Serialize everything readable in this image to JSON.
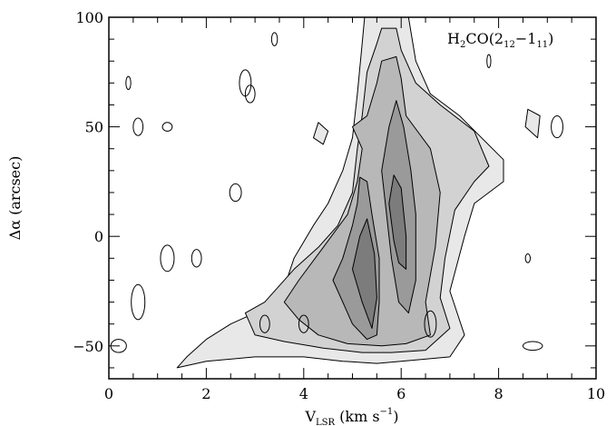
{
  "chart_data": {
    "type": "contour",
    "xlabel": {
      "main": "V",
      "sub": "LSR",
      "units": " (km s",
      "exp": "−1",
      "close": ")"
    },
    "ylabel": "Δα (arcsec)",
    "xlim": [
      0,
      10
    ],
    "ylim": [
      -65,
      100
    ],
    "xticks_major": [
      0,
      2,
      4,
      6,
      8,
      10
    ],
    "xticks_minor_step": 0.5,
    "yticks_major": [
      -50,
      0,
      50,
      100
    ],
    "yticks_minor_step": 10,
    "annotation": {
      "mol": "H",
      "s1": "2",
      "mid": "CO(2",
      "s2": "12",
      "dash": "−1",
      "s3": "11",
      "end": ")"
    },
    "levels": [
      {
        "fill": "#e8e8e8",
        "polygons": [
          [
            [
              1.4,
              -60
            ],
            [
              1.6,
              -55
            ],
            [
              2.0,
              -47
            ],
            [
              2.5,
              -40
            ],
            [
              3.0,
              -35
            ],
            [
              3.5,
              -30
            ],
            [
              3.8,
              -10
            ],
            [
              4.2,
              5
            ],
            [
              4.5,
              15
            ],
            [
              4.8,
              30
            ],
            [
              5.0,
              45
            ],
            [
              5.1,
              65
            ],
            [
              5.2,
              88
            ],
            [
              5.25,
              100
            ],
            [
              6.15,
              100
            ],
            [
              6.3,
              80
            ],
            [
              6.6,
              65
            ],
            [
              7.2,
              55
            ],
            [
              8.1,
              35
            ],
            [
              8.1,
              25
            ],
            [
              7.5,
              15
            ],
            [
              7.3,
              0
            ],
            [
              7.0,
              -25
            ],
            [
              7.3,
              -45
            ],
            [
              7.0,
              -55
            ],
            [
              6.0,
              -57
            ],
            [
              5.5,
              -58
            ],
            [
              4.8,
              -57
            ],
            [
              4.0,
              -55
            ],
            [
              3.0,
              -55
            ],
            [
              2.0,
              -57
            ]
          ],
          [
            [
              4.2,
              45
            ],
            [
              4.4,
              42
            ],
            [
              4.5,
              48
            ],
            [
              4.3,
              52
            ]
          ],
          [
            [
              8.55,
              50
            ],
            [
              8.8,
              45
            ],
            [
              8.85,
              55
            ],
            [
              8.6,
              58
            ]
          ]
        ]
      },
      {
        "fill": "#d2d2d2",
        "polygons": [
          [
            [
              2.8,
              -35
            ],
            [
              3.2,
              -30
            ],
            [
              3.8,
              -15
            ],
            [
              4.3,
              -5
            ],
            [
              4.7,
              5
            ],
            [
              5.0,
              20
            ],
            [
              5.1,
              40
            ],
            [
              5.2,
              55
            ],
            [
              5.3,
              75
            ],
            [
              5.5,
              88
            ],
            [
              5.6,
              95
            ],
            [
              5.9,
              95
            ],
            [
              6.0,
              85
            ],
            [
              6.3,
              70
            ],
            [
              6.8,
              60
            ],
            [
              7.5,
              48
            ],
            [
              7.8,
              32
            ],
            [
              7.5,
              25
            ],
            [
              7.1,
              12
            ],
            [
              6.9,
              -10
            ],
            [
              6.8,
              -28
            ],
            [
              7.0,
              -42
            ],
            [
              6.5,
              -52
            ],
            [
              5.8,
              -53
            ],
            [
              5.2,
              -53
            ],
            [
              4.4,
              -51
            ],
            [
              3.6,
              -48
            ],
            [
              3.0,
              -45
            ]
          ]
        ]
      },
      {
        "fill": "#b8b8b8",
        "polygons": [
          [
            [
              3.9,
              -20
            ],
            [
              4.4,
              -5
            ],
            [
              4.9,
              10
            ],
            [
              5.1,
              25
            ],
            [
              5.2,
              40
            ],
            [
              5.0,
              50
            ],
            [
              5.3,
              55
            ],
            [
              5.5,
              70
            ],
            [
              5.6,
              80
            ],
            [
              5.9,
              82
            ],
            [
              6.0,
              72
            ],
            [
              6.1,
              55
            ],
            [
              6.6,
              40
            ],
            [
              6.8,
              20
            ],
            [
              6.7,
              -5
            ],
            [
              6.5,
              -30
            ],
            [
              6.6,
              -45
            ],
            [
              6.1,
              -49
            ],
            [
              5.6,
              -50
            ],
            [
              4.9,
              -49
            ],
            [
              4.3,
              -45
            ],
            [
              3.9,
              -38
            ],
            [
              3.6,
              -30
            ]
          ]
        ]
      },
      {
        "fill": "#9a9a9a",
        "polygons": [
          [
            [
              4.8,
              -10
            ],
            [
              5.0,
              5
            ],
            [
              5.1,
              15
            ],
            [
              5.15,
              27
            ],
            [
              5.3,
              25
            ],
            [
              5.4,
              10
            ],
            [
              5.55,
              -10
            ],
            [
              5.55,
              -30
            ],
            [
              5.5,
              -45
            ],
            [
              5.3,
              -47
            ],
            [
              5.0,
              -40
            ],
            [
              4.8,
              -30
            ],
            [
              4.6,
              -20
            ]
          ],
          [
            [
              5.6,
              30
            ],
            [
              5.75,
              50
            ],
            [
              5.9,
              62
            ],
            [
              6.05,
              50
            ],
            [
              6.2,
              30
            ],
            [
              6.3,
              10
            ],
            [
              6.3,
              -20
            ],
            [
              6.15,
              -35
            ],
            [
              5.95,
              -30
            ],
            [
              5.8,
              -10
            ],
            [
              5.7,
              10
            ]
          ]
        ]
      },
      {
        "fill": "#7c7c7c",
        "polygons": [
          [
            [
              5.0,
              -15
            ],
            [
              5.15,
              0
            ],
            [
              5.3,
              8
            ],
            [
              5.45,
              -8
            ],
            [
              5.5,
              -28
            ],
            [
              5.4,
              -42
            ],
            [
              5.2,
              -30
            ]
          ],
          [
            [
              5.75,
              15
            ],
            [
              5.85,
              28
            ],
            [
              6.0,
              22
            ],
            [
              6.1,
              0
            ],
            [
              6.1,
              -15
            ],
            [
              5.95,
              -12
            ],
            [
              5.85,
              -2
            ]
          ]
        ]
      }
    ],
    "blobs": [
      [
        0.4,
        70,
        0.05,
        3
      ],
      [
        0.6,
        50,
        0.1,
        4
      ],
      [
        1.2,
        50,
        0.1,
        2
      ],
      [
        3.4,
        90,
        0.06,
        3
      ],
      [
        2.8,
        70,
        0.12,
        6
      ],
      [
        2.9,
        65,
        0.1,
        4
      ],
      [
        2.6,
        20,
        0.12,
        4
      ],
      [
        1.2,
        -10,
        0.14,
        6
      ],
      [
        1.8,
        -10,
        0.1,
        4
      ],
      [
        0.6,
        -30,
        0.14,
        8
      ],
      [
        3.2,
        -40,
        0.1,
        4
      ],
      [
        4.0,
        -40,
        0.1,
        4
      ],
      [
        6.6,
        -40,
        0.12,
        6
      ],
      [
        8.6,
        -10,
        0.05,
        2
      ],
      [
        8.7,
        -50,
        0.2,
        2
      ],
      [
        7.8,
        80,
        0.04,
        3
      ],
      [
        9.2,
        50,
        0.12,
        5
      ],
      [
        0.2,
        -50,
        0.16,
        3
      ]
    ]
  }
}
